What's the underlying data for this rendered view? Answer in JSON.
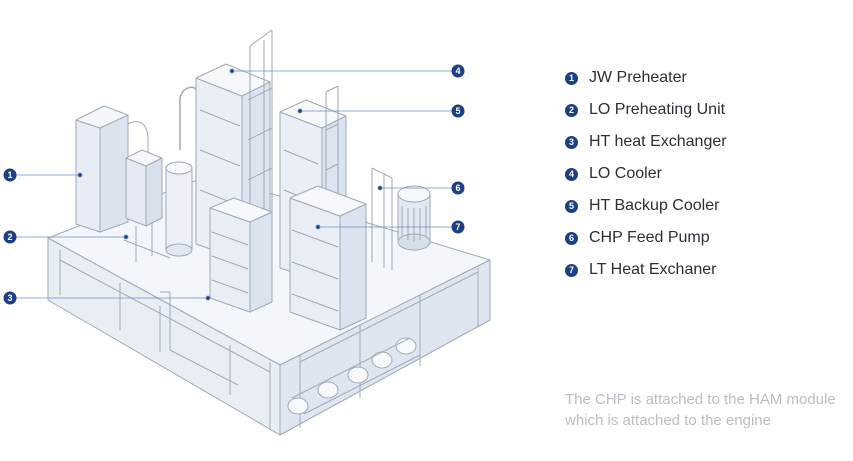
{
  "legend": {
    "items": [
      {
        "number": "1",
        "label": "JW Preheater"
      },
      {
        "number": "2",
        "label": "LO Preheating Unit"
      },
      {
        "number": "3",
        "label": "HT heat Exchanger"
      },
      {
        "number": "4",
        "label": "LO Cooler"
      },
      {
        "number": "5",
        "label": "HT Backup Cooler"
      },
      {
        "number": "6",
        "label": "CHP Feed Pump"
      },
      {
        "number": "7",
        "label": "LT Heat Exchaner"
      }
    ]
  },
  "note": {
    "line1": "The CHP is attached to the HAM module",
    "line2": "which is attached to the engine"
  },
  "colors": {
    "badge": "#1c3f87",
    "leader_line": "#6f8fc6",
    "machine_stroke": "#9fa9b8",
    "machine_fill": "#edf1f7",
    "note_text": "#b9bec6"
  }
}
